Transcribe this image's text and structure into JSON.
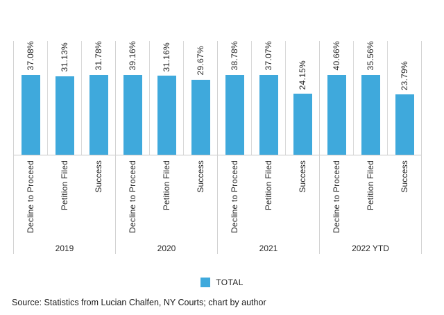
{
  "legend": {
    "label": "TOTAL",
    "color": "#3FA9DC"
  },
  "footer": {
    "source": "Source: Statistics from Lucian Chalfen, NY Courts; chart by author"
  },
  "chart_data": {
    "type": "bar",
    "series_name": "TOTAL",
    "bar_color": "#3FA9DC",
    "ylim": [
      0,
      45
    ],
    "value_suffix": "%",
    "legend_position": "bottom-center",
    "grid": "vertical category separators only, no horizontal gridlines, no y-axis",
    "label_orientation": "rotated 90deg (bottom-to-top)",
    "groups": [
      {
        "label": "2019",
        "categories": [
          "Decline to Proceed",
          "Petition Filed",
          "Success"
        ],
        "values": [
          37.08,
          31.13,
          31.78
        ],
        "value_labels": [
          "37.08%",
          "31.13%",
          "31.78%"
        ]
      },
      {
        "label": "2020",
        "categories": [
          "Decline to Proceed",
          "Petition Filed",
          "Success"
        ],
        "values": [
          39.16,
          31.16,
          29.67
        ],
        "value_labels": [
          "39.16%",
          "31.16%",
          "29.67%"
        ]
      },
      {
        "label": "2021",
        "categories": [
          "Decline to Proceed",
          "Petition Filed",
          "Success"
        ],
        "values": [
          38.78,
          37.07,
          24.15
        ],
        "value_labels": [
          "38.78%",
          "37.07%",
          "24.15%"
        ]
      },
      {
        "label": "2022 YTD",
        "categories": [
          "Decline to Proceed",
          "Petition Filed",
          "Success"
        ],
        "values": [
          40.66,
          35.56,
          23.79
        ],
        "value_labels": [
          "40.66%",
          "35.56%",
          "23.79%"
        ]
      }
    ]
  }
}
